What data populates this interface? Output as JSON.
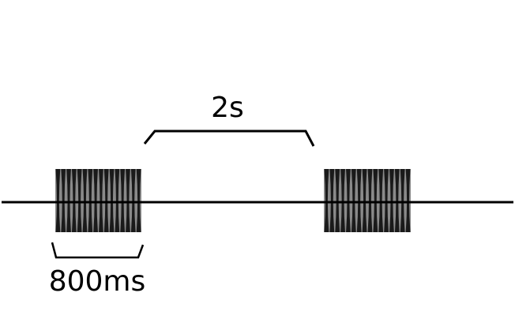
{
  "diagram": {
    "interval_label": "2s",
    "duration_label": "800ms",
    "pulse_count": 2,
    "oscillations_per_pulse": 16,
    "colors": {
      "line": "#000000",
      "pulse_fill": "#1a1a1a",
      "pulse_edge": "#8a8a8a",
      "background": "#ffffff"
    }
  }
}
